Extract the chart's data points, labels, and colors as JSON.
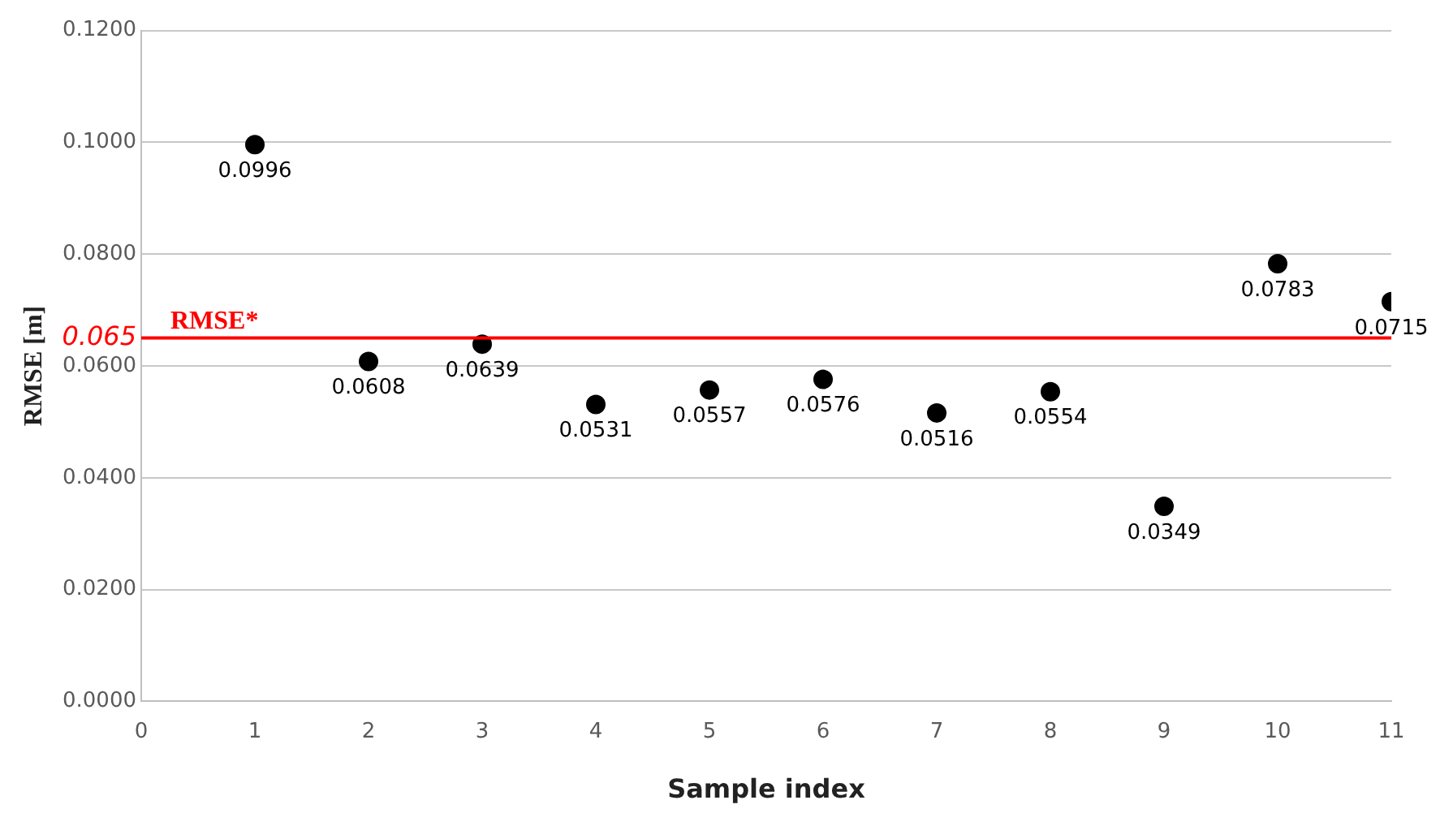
{
  "chart_data": {
    "type": "scatter",
    "xlabel": "Sample index",
    "ylabel": "RMSE [m]",
    "x": [
      1,
      2,
      3,
      4,
      5,
      6,
      7,
      8,
      9,
      10,
      11
    ],
    "series": [
      {
        "color": "#000000",
        "values": [
          0.0996,
          0.0608,
          0.0639,
          0.0531,
          0.0557,
          0.0576,
          0.0516,
          0.0554,
          0.0349,
          0.0783,
          0.0715
        ]
      }
    ],
    "xlim": [
      0,
      11
    ],
    "xticks": [
      0,
      1,
      2,
      3,
      4,
      5,
      6,
      7,
      8,
      9,
      10,
      11
    ],
    "ylim": [
      0,
      0.12
    ],
    "yticks": [
      {
        "value": 0,
        "label": "0.0000"
      },
      {
        "value": 0.02,
        "label": "0.0200"
      },
      {
        "value": 0.04,
        "label": "0.0400"
      },
      {
        "value": 0.06,
        "label": "0.0600"
      },
      {
        "value": 0.065,
        "label": "0.065"
      },
      {
        "value": 0.08,
        "label": "0.0800"
      },
      {
        "value": 0.1,
        "label": "0.1000"
      },
      {
        "value": 0.12,
        "label": "0.1200"
      }
    ],
    "ref_lines": [
      {
        "axis": "y",
        "value": 0.065,
        "label": "RMSE*",
        "color": "#ff0000"
      }
    ],
    "grid": "y",
    "legend": false,
    "marker": "circle",
    "data_labels": true
  }
}
